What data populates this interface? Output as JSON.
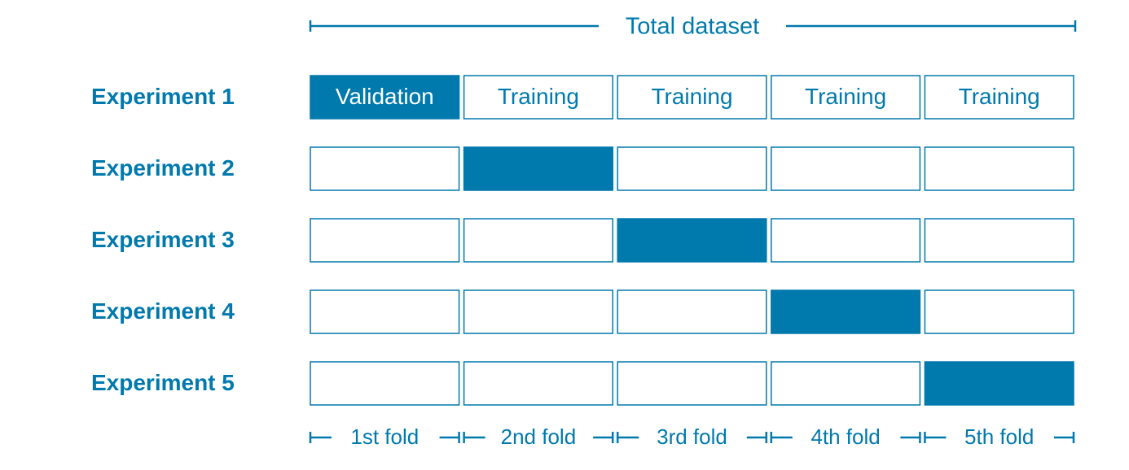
{
  "header": {
    "title": "Total dataset"
  },
  "experiments": [
    {
      "label": "Experiment 1",
      "cells": [
        "Validation",
        "Training",
        "Training",
        "Training",
        "Training"
      ]
    },
    {
      "label": "Experiment 2"
    },
    {
      "label": "Experiment 3"
    },
    {
      "label": "Experiment 4"
    },
    {
      "label": "Experiment 5"
    }
  ],
  "folds": [
    "1st fold",
    "2nd fold",
    "3rd fold",
    "4th fold",
    "5th fold"
  ]
}
